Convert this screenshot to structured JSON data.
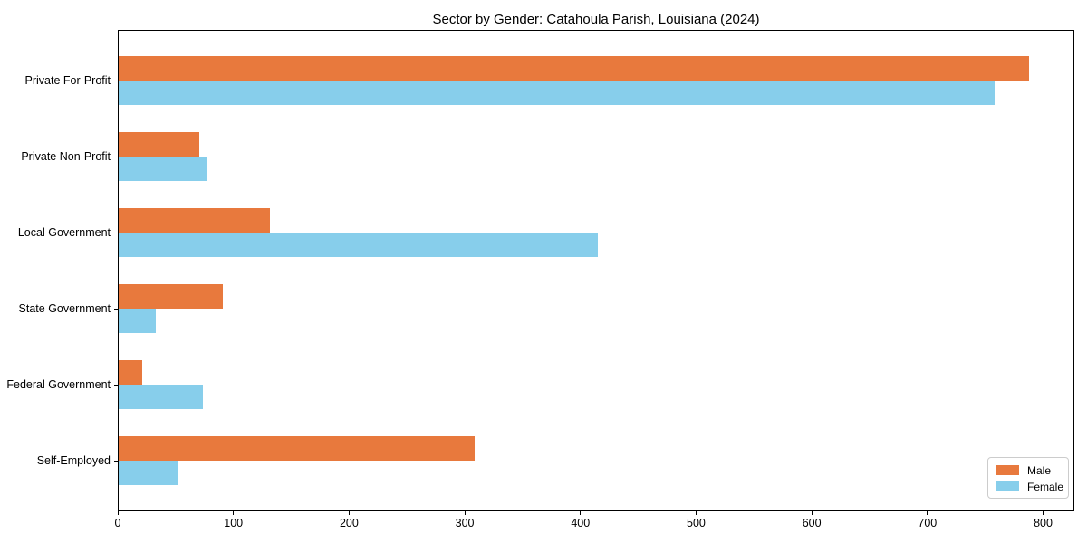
{
  "chart_data": {
    "type": "bar",
    "orientation": "horizontal",
    "title": "Sector by Gender: Catahoula Parish, Louisiana (2024)",
    "categories": [
      "Private For-Profit",
      "Private Non-Profit",
      "Local Government",
      "State Government",
      "Federal Government",
      "Self-Employed"
    ],
    "series": [
      {
        "name": "Male",
        "color": "#e8793d",
        "values": [
          787,
          70,
          131,
          90,
          20,
          308
        ]
      },
      {
        "name": "Female",
        "color": "#87ceeb",
        "values": [
          757,
          77,
          414,
          32,
          73,
          51
        ]
      }
    ],
    "xlabel": "",
    "ylabel": "",
    "xlim": [
      0,
      827
    ],
    "xticks": [
      0,
      100,
      200,
      300,
      400,
      500,
      600,
      700,
      800
    ],
    "grid": false,
    "legend_position": "lower right",
    "plot_background": "#ffffff",
    "spine_color": "#000000",
    "text_color": "#000000"
  }
}
